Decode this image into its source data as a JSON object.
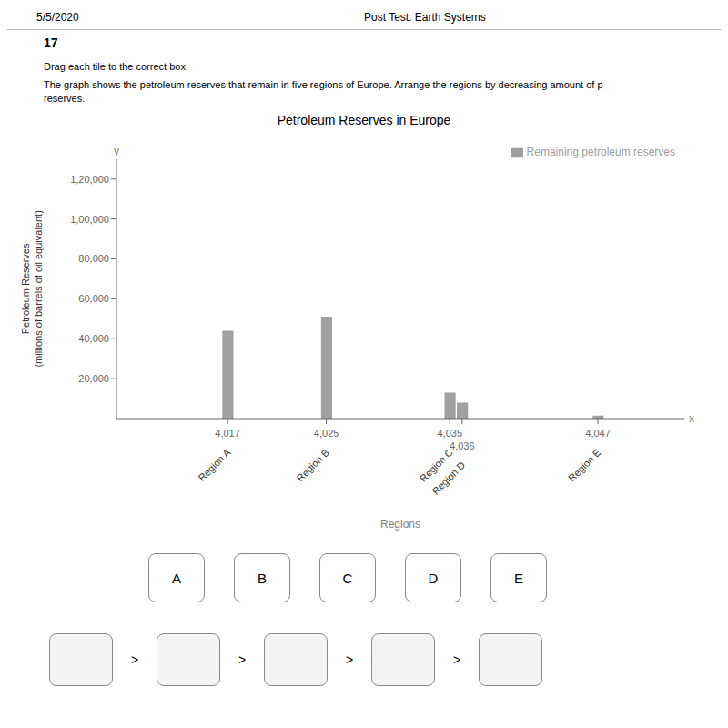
{
  "chart_data": {
    "type": "bar",
    "title": "Petroleum Reserves in Europe",
    "xlabel": "Regions",
    "ylabel": "Petroleum Reserves\n(millions of barrels of oil equivalent)",
    "x": [
      4017,
      4025,
      4035,
      4036,
      4047
    ],
    "categories": [
      "Region A",
      "Region B",
      "Region C",
      "Region D",
      "Region E"
    ],
    "series": [
      {
        "name": "Remaining petroleum reserves",
        "color": "#a0a0a0",
        "values": [
          44000,
          51000,
          13000,
          8000,
          1500
        ]
      }
    ],
    "xlim": [
      4008,
      4054
    ],
    "xticks": [
      {
        "value": 4017,
        "label": "4,017"
      },
      {
        "value": 4025,
        "label": "4,025"
      },
      {
        "value": 4035,
        "label": "4,035"
      },
      {
        "value": 4036,
        "label": "4,036"
      },
      {
        "value": 4047,
        "label": "4,047"
      }
    ],
    "ylim": [
      0,
      130000
    ],
    "yticks": [
      {
        "value": 20000,
        "label": "20,000"
      },
      {
        "value": 40000,
        "label": "40,000"
      },
      {
        "value": 60000,
        "label": "60,000"
      },
      {
        "value": 80000,
        "label": "80,000"
      },
      {
        "value": 100000,
        "label": "1,00,000"
      },
      {
        "value": 120000,
        "label": "1,20,000"
      }
    ],
    "legend": "upper right",
    "x_letter": "x",
    "y_letter": "y",
    "header": [
      "5/5/2020",
      "Post Test: Earth Systems"
    ],
    "question": "17",
    "instructions": [
      "Drag each tile to the correct box.",
      "The graph shows the petroleum reserves that remain in five regions of Europe. Arrange the regions by decreasing amount of p",
      "reserves."
    ],
    "tiles": [
      "A",
      "B",
      "C",
      "D",
      "E"
    ],
    "answer_boxes": 5,
    "separator": ">"
  }
}
